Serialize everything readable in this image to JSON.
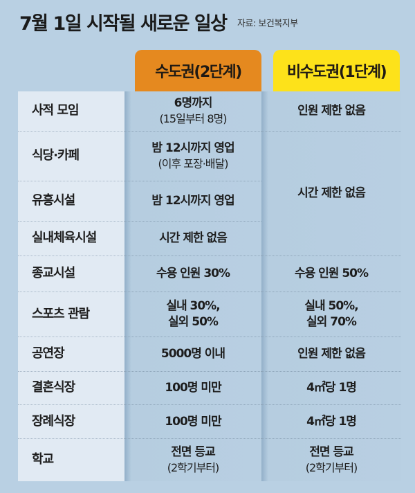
{
  "title": "7월 1일 시작될 새로운 일상",
  "source": "자료: 보건복지부",
  "columns": {
    "capital": "수도권(2단계)",
    "non_capital": "비수도권(1단계)"
  },
  "colors": {
    "capital": "#e5891f",
    "non_capital": "#fde21a",
    "background": "#b9d0e3"
  },
  "rows": [
    {
      "label": "사적 모임",
      "capital": "6명까지",
      "capital_sub": "(15일부터 8명)",
      "non_capital": "인원 제한 없음"
    },
    {
      "label": "식당·카페",
      "capital": "밤 12시까지 영업",
      "capital_sub": "(이후 포장·배달)"
    },
    {
      "label": "유흥시설",
      "capital": "밤 12시까지 영업"
    },
    {
      "label": "실내체육시설",
      "capital": "시간 제한 없음"
    },
    {
      "label": "종교시설",
      "capital": "수용 인원 30%",
      "non_capital": "수용 인원 50%"
    },
    {
      "label": "스포츠 관람",
      "capital": "실내 30%,",
      "capital_sub": "실외 50%",
      "non_capital": "실내 50%,",
      "non_capital_sub": "실외 70%"
    },
    {
      "label": "공연장",
      "capital": "5000명 이내",
      "non_capital": "인원 제한 없음"
    },
    {
      "label": "결혼식장",
      "capital": "100명 미만",
      "non_capital": "4㎡당 1명"
    },
    {
      "label": "장례식장",
      "capital": "100명 미만",
      "non_capital": "4㎡당 1명"
    },
    {
      "label": "학교",
      "capital": "전면 등교",
      "capital_sub": "(2학기부터)",
      "non_capital": "전면 등교",
      "non_capital_sub": "(2학기부터)"
    }
  ],
  "merged_non_capital": "시간 제한 없음"
}
